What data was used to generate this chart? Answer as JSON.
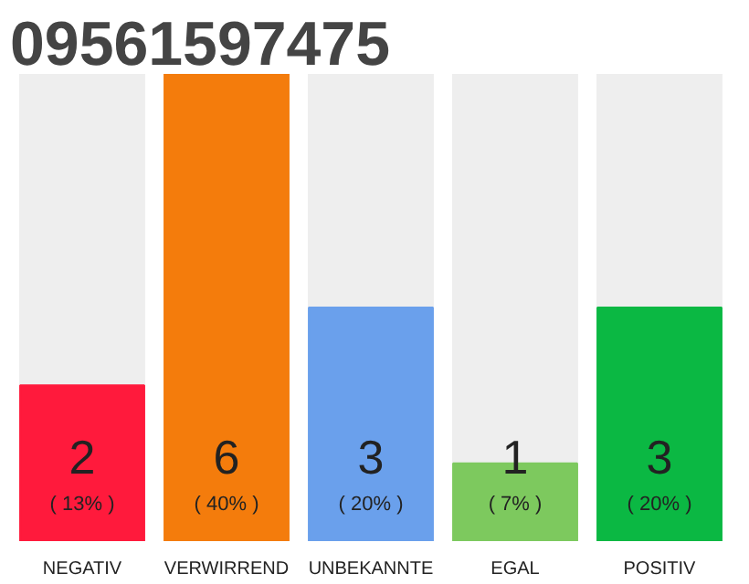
{
  "chart_data": {
    "type": "bar",
    "title": "09561597475",
    "categories": [
      "NEGATIV",
      "VERWIRREND",
      "UNBEKANNTE",
      "EGAL",
      "POSITIV"
    ],
    "values": [
      2,
      6,
      3,
      1,
      3
    ],
    "colors": [
      "#ff1a3c",
      "#f47c0c",
      "#6aa0ec",
      "#7dc95e",
      "#0bb843"
    ],
    "data_labels": true,
    "annotations": [
      "( 13% )",
      "( 40% )",
      "( 20% )",
      "( 7% )",
      "( 20% )"
    ],
    "grid": false
  }
}
